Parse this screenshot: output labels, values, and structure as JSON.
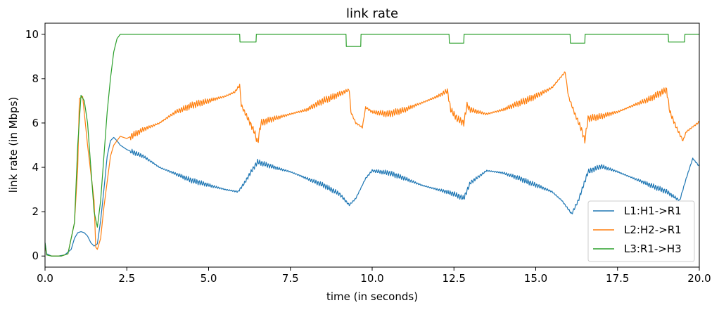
{
  "chart_data": {
    "type": "line",
    "title": "link rate",
    "xlabel": "time (in seconds)",
    "ylabel": "link rate (in Mbps)",
    "xlim": [
      0,
      20
    ],
    "ylim": [
      -0.5,
      10.5
    ],
    "xticks": [
      0,
      2.5,
      5,
      7.5,
      10,
      12.5,
      15,
      17.5,
      20
    ],
    "xtick_labels": [
      "0.0",
      "2.5",
      "5.0",
      "7.5",
      "10.0",
      "12.5",
      "15.0",
      "17.5",
      "20.0"
    ],
    "yticks": [
      0,
      2,
      4,
      6,
      8,
      10
    ],
    "ytick_labels": [
      "0",
      "2",
      "4",
      "6",
      "8",
      "10"
    ],
    "grid": false,
    "legend_position": "bottom-right",
    "series": [
      {
        "name": "L1:H1->R1",
        "color": "#1f77b4",
        "x": [
          0,
          0.05,
          0.2,
          0.4,
          0.6,
          0.8,
          0.9,
          1.0,
          1.1,
          1.2,
          1.3,
          1.4,
          1.5,
          1.6,
          1.7,
          1.8,
          1.9,
          2.0,
          2.1,
          2.2,
          2.3,
          2.5,
          3.0,
          3.5,
          4.0,
          4.5,
          5.0,
          5.5,
          5.9,
          6.1,
          6.3,
          6.5,
          7.0,
          7.5,
          8.0,
          8.5,
          9.0,
          9.3,
          9.5,
          9.8,
          10.0,
          10.5,
          11.0,
          11.5,
          12.0,
          12.5,
          12.8,
          13.0,
          13.5,
          14.0,
          14.5,
          15.0,
          15.5,
          15.8,
          16.0,
          16.1,
          16.3,
          16.6,
          17.0,
          17.5,
          18.0,
          18.5,
          19.0,
          19.2,
          19.4,
          19.6,
          19.8,
          20.0
        ],
        "y": [
          0.6,
          0.1,
          0.0,
          0.0,
          0.05,
          0.3,
          0.8,
          1.05,
          1.1,
          1.05,
          0.9,
          0.6,
          0.45,
          0.55,
          1.6,
          3.0,
          4.5,
          5.2,
          5.35,
          5.2,
          5.0,
          4.8,
          4.5,
          4.0,
          3.7,
          3.4,
          3.2,
          3.0,
          2.9,
          3.3,
          3.8,
          4.25,
          4.0,
          3.8,
          3.5,
          3.2,
          2.8,
          2.3,
          2.6,
          3.5,
          3.85,
          3.75,
          3.5,
          3.2,
          3.0,
          2.8,
          2.6,
          3.3,
          3.85,
          3.75,
          3.5,
          3.2,
          2.9,
          2.5,
          2.1,
          1.9,
          2.5,
          3.8,
          4.05,
          3.8,
          3.5,
          3.2,
          2.9,
          2.7,
          2.5,
          3.5,
          4.4,
          4.05
        ]
      },
      {
        "name": "L2:H2->R1",
        "color": "#ff7f0e",
        "x": [
          0,
          0.05,
          0.2,
          0.5,
          0.7,
          0.9,
          1.0,
          1.05,
          1.15,
          1.3,
          1.5,
          1.55,
          1.6,
          1.7,
          1.8,
          2.0,
          2.1,
          2.2,
          2.3,
          2.5,
          3.0,
          3.5,
          4.0,
          4.5,
          5.0,
          5.5,
          5.8,
          5.95,
          6.0,
          6.2,
          6.4,
          6.5,
          6.6,
          7.0,
          7.5,
          8.0,
          8.5,
          9.0,
          9.3,
          9.35,
          9.5,
          9.7,
          9.8,
          10.0,
          10.5,
          11.0,
          11.5,
          12.0,
          12.3,
          12.4,
          12.6,
          12.8,
          12.9,
          13.0,
          13.5,
          14.0,
          14.5,
          15.0,
          15.5,
          15.9,
          16.0,
          16.2,
          16.4,
          16.5,
          16.6,
          17.0,
          17.5,
          18.0,
          18.5,
          19.0,
          19.1,
          19.3,
          19.5,
          19.6,
          20.0
        ],
        "y": [
          0.5,
          0.05,
          0.0,
          0.0,
          0.1,
          1.5,
          4.0,
          7.1,
          7.2,
          5.0,
          2.5,
          0.4,
          0.3,
          0.8,
          2.2,
          4.5,
          5.0,
          5.2,
          5.4,
          5.3,
          5.7,
          6.0,
          6.5,
          6.8,
          7.0,
          7.2,
          7.4,
          7.7,
          6.8,
          6.2,
          5.6,
          5.1,
          6.0,
          6.2,
          6.4,
          6.6,
          7.0,
          7.3,
          7.5,
          6.5,
          6.0,
          5.8,
          6.7,
          6.5,
          6.4,
          6.6,
          6.9,
          7.2,
          7.45,
          6.6,
          6.2,
          6.0,
          6.8,
          6.6,
          6.4,
          6.6,
          6.9,
          7.2,
          7.6,
          8.3,
          7.2,
          6.4,
          5.7,
          5.2,
          6.2,
          6.3,
          6.5,
          6.8,
          7.1,
          7.5,
          6.5,
          5.8,
          5.2,
          5.6,
          6.05
        ]
      },
      {
        "name": "L3:R1->H3",
        "color": "#2ca02c",
        "x": [
          0,
          0.05,
          0.2,
          0.5,
          0.7,
          0.9,
          1.0,
          1.1,
          1.2,
          1.3,
          1.4,
          1.5,
          1.6,
          1.7,
          1.8,
          1.9,
          2.0,
          2.1,
          2.2,
          2.3,
          2.5,
          5.95,
          5.96,
          6.45,
          6.46,
          9.2,
          9.21,
          9.65,
          9.66,
          12.35,
          12.36,
          12.8,
          12.81,
          16.05,
          16.06,
          16.5,
          16.51,
          19.05,
          19.06,
          19.55,
          19.56,
          20.0
        ],
        "y": [
          0.6,
          0.05,
          0.0,
          0.0,
          0.1,
          1.5,
          5.0,
          7.25,
          7.0,
          6.0,
          4.0,
          2.0,
          1.3,
          2.5,
          4.5,
          6.5,
          8.0,
          9.2,
          9.8,
          10.0,
          10.0,
          10.0,
          9.65,
          9.65,
          10.0,
          10.0,
          9.45,
          9.45,
          10.0,
          10.0,
          9.6,
          9.6,
          10.0,
          10.0,
          9.6,
          9.6,
          10.0,
          10.0,
          9.65,
          9.65,
          10.0,
          10.0
        ]
      }
    ]
  }
}
